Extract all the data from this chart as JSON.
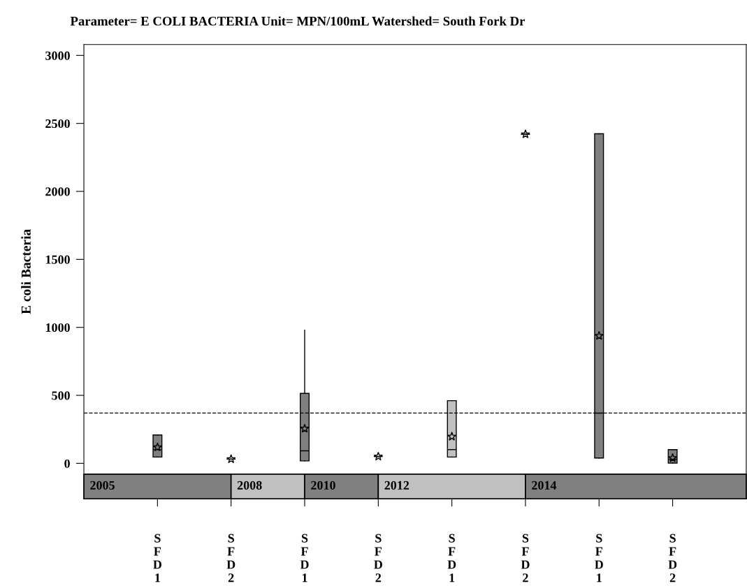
{
  "chart_data": {
    "type": "box",
    "title": "Parameter= E COLI BACTERIA Unit= MPN/100mL Watershed= South Fork Dr",
    "ylabel": "E coli Bacteria",
    "categories": [
      "SFD1",
      "SFD2",
      "SFD1",
      "SFD2",
      "SFD1",
      "SFD2",
      "SFD1",
      "SFD2"
    ],
    "ylim": [
      -260,
      3080
    ],
    "yticks": [
      0,
      500,
      1000,
      1500,
      2000,
      2500,
      3000
    ],
    "boxes": [
      {
        "low": 46,
        "q1": 46,
        "median": 100,
        "q3": 209,
        "high": 209,
        "mean": 118
      },
      {
        "low": 31,
        "q1": 31,
        "median": 31,
        "q3": 31,
        "high": 31,
        "mean": 31
      },
      {
        "low": 18,
        "q1": 18,
        "median": 92,
        "q3": 514,
        "high": 980,
        "mean": 255
      },
      {
        "low": 50,
        "q1": 50,
        "median": 50,
        "q3": 50,
        "high": 50,
        "mean": 50
      },
      {
        "low": 46,
        "q1": 46,
        "median": 101,
        "q3": 461,
        "high": 461,
        "mean": 197
      },
      {
        "low": 2420,
        "q1": 2420,
        "median": 2420,
        "q3": 2420,
        "high": 2420,
        "mean": 2420
      },
      {
        "low": 39,
        "q1": 39,
        "median": 369,
        "q3": 2424,
        "high": 2424,
        "mean": 938
      },
      {
        "low": 2,
        "q1": 2,
        "median": 30,
        "q3": 101,
        "high": 101,
        "mean": 39
      }
    ],
    "colors": [
      "#808080",
      "#c0c0c0",
      "#808080",
      "#c0c0c0",
      "#c0c0c0",
      "#808080",
      "#808080",
      "#808080"
    ],
    "marker": "star",
    "ref_lines": [
      {
        "axis": "y",
        "value": 370,
        "line_style": "dashed",
        "color": "#000000"
      }
    ],
    "annotations": [
      "2005",
      "2008",
      "2010",
      "2012",
      "2014"
    ],
    "grid": false,
    "legend": false
  }
}
